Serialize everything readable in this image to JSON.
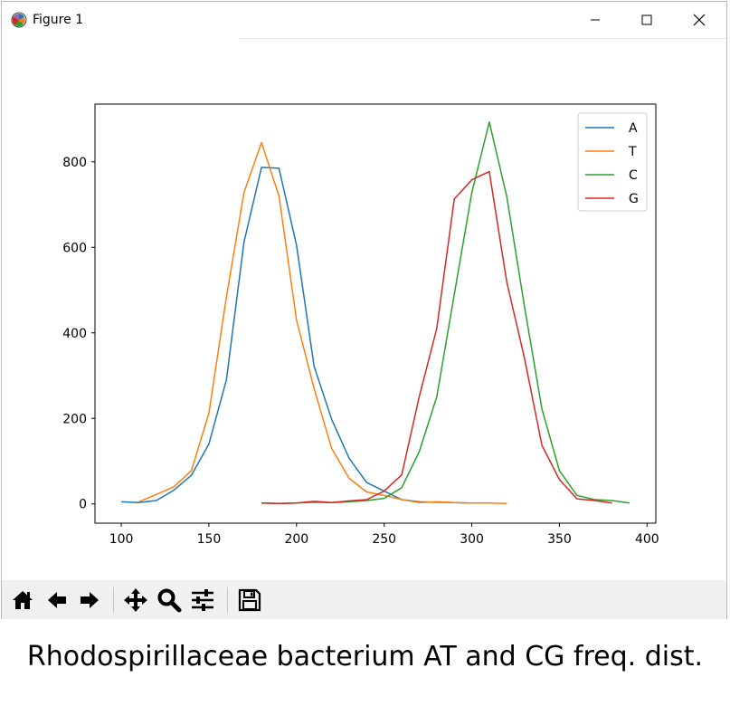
{
  "window": {
    "title": "Figure 1",
    "app_icon": "matplotlib-logo-icon",
    "controls": [
      "minimize-icon",
      "maximize-icon",
      "close-icon"
    ]
  },
  "toolbar": {
    "buttons": [
      "home-icon",
      "back-arrow-icon",
      "forward-arrow-icon",
      "pan-icon",
      "zoom-icon",
      "configure-subplots-icon",
      "save-icon"
    ]
  },
  "caption": "Rhodospirillaceae bacterium AT and CG freq. dist.",
  "chart_data": {
    "type": "line",
    "title": "",
    "xlabel": "",
    "ylabel": "",
    "xlim": [
      85,
      405
    ],
    "ylim": [
      -45,
      935
    ],
    "xticks": [
      100,
      150,
      200,
      250,
      300,
      350,
      400
    ],
    "yticks": [
      0,
      200,
      400,
      600,
      800
    ],
    "grid": false,
    "legend_position": "top-right",
    "series": [
      {
        "name": "A",
        "color": "#1f77b4",
        "x": [
          100,
          110,
          120,
          130,
          140,
          150,
          160,
          170,
          180,
          190,
          200,
          210,
          220,
          230,
          240,
          250,
          260,
          270,
          280,
          290,
          300,
          310
        ],
        "y": [
          5,
          3,
          8,
          32,
          67,
          140,
          290,
          612,
          787,
          785,
          605,
          322,
          198,
          107,
          50,
          30,
          10,
          5,
          4,
          3,
          2,
          2
        ]
      },
      {
        "name": "T",
        "color": "#ff7f0e",
        "x": [
          110,
          120,
          130,
          140,
          150,
          160,
          170,
          180,
          190,
          200,
          210,
          220,
          230,
          240,
          250,
          260,
          270,
          280,
          290,
          300,
          310,
          320
        ],
        "y": [
          5,
          22,
          40,
          78,
          212,
          484,
          728,
          845,
          720,
          430,
          270,
          130,
          60,
          28,
          20,
          10,
          3,
          5,
          3,
          2,
          2,
          1
        ]
      },
      {
        "name": "C",
        "color": "#2ca02c",
        "x": [
          180,
          190,
          200,
          210,
          220,
          230,
          240,
          250,
          260,
          270,
          280,
          290,
          300,
          310,
          320,
          330,
          340,
          350,
          360,
          370,
          380,
          390
        ],
        "y": [
          2,
          1,
          2,
          4,
          3,
          5,
          8,
          13,
          38,
          122,
          250,
          490,
          728,
          893,
          718,
          463,
          222,
          78,
          20,
          10,
          8,
          2
        ]
      },
      {
        "name": "G",
        "color": "#d62728",
        "x": [
          180,
          190,
          200,
          210,
          220,
          230,
          240,
          250,
          260,
          270,
          280,
          290,
          300,
          310,
          320,
          330,
          340,
          350,
          360,
          370,
          380
        ],
        "y": [
          2,
          1,
          2,
          6,
          3,
          7,
          10,
          30,
          68,
          250,
          410,
          713,
          758,
          777,
          518,
          342,
          137,
          57,
          12,
          8,
          2
        ]
      }
    ]
  }
}
